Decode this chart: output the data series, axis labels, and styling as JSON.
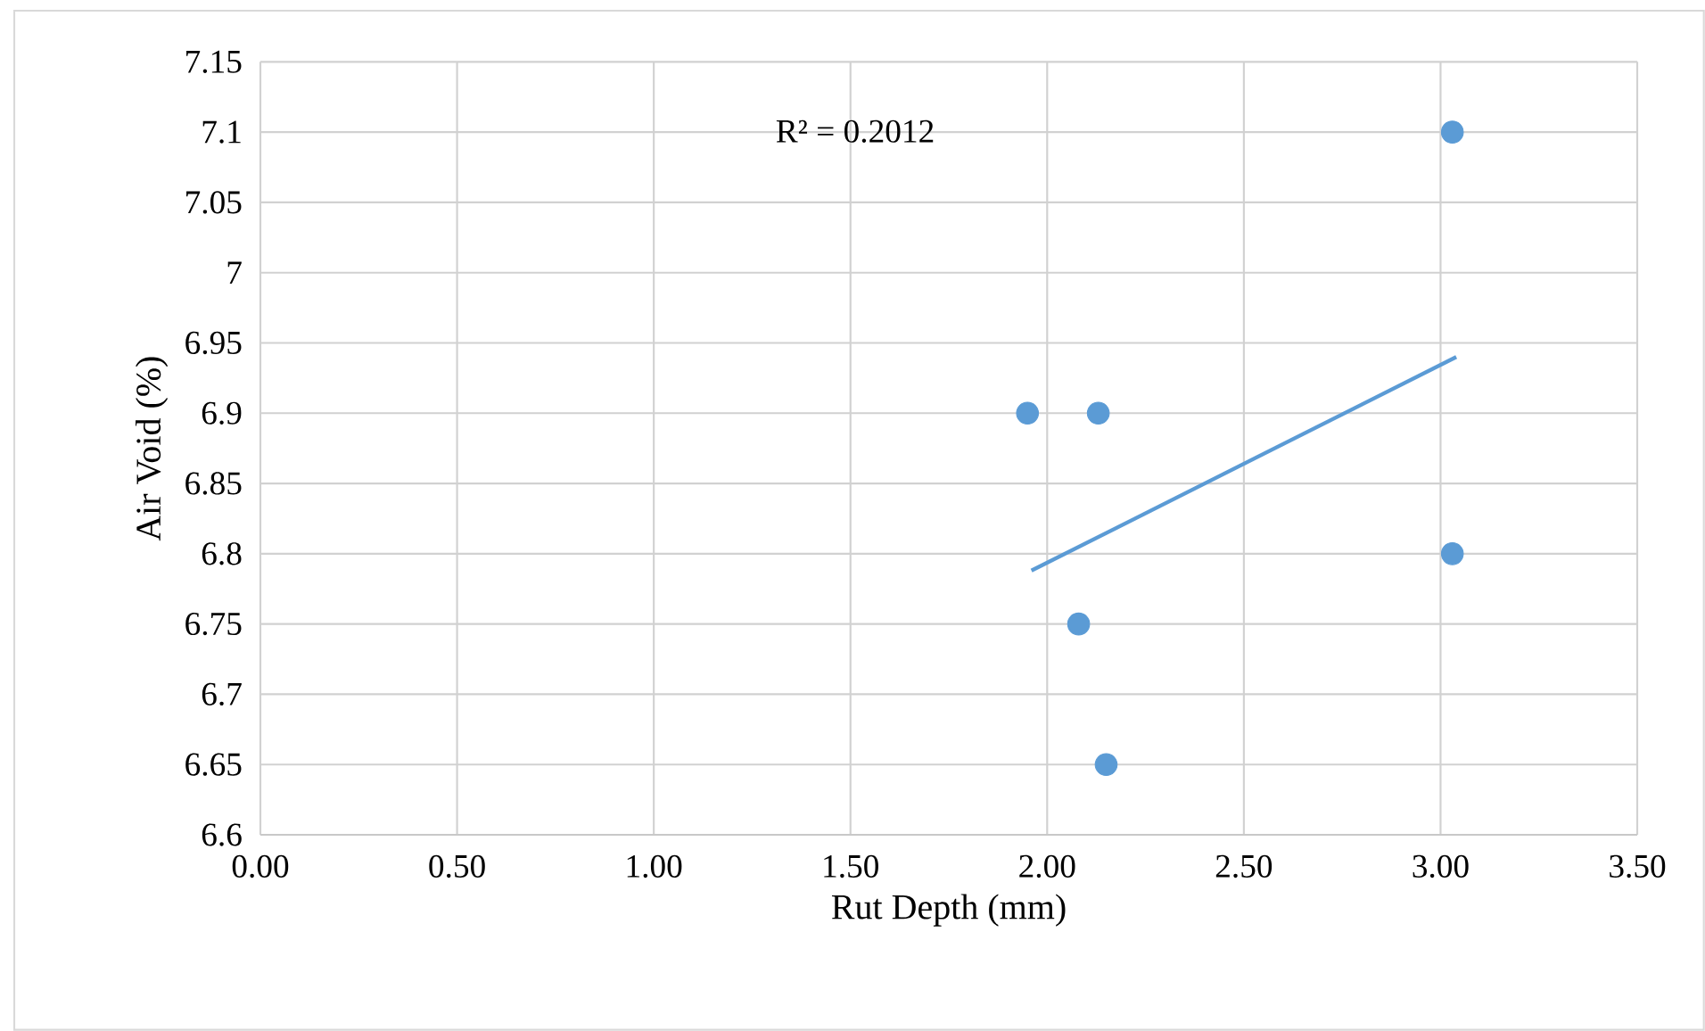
{
  "chart_data": {
    "type": "scatter",
    "xlabel": "Rut Depth (mm)",
    "ylabel": "Air Void (%)",
    "series": [
      {
        "marker": "circle",
        "color": "#5b9bd5",
        "x": [
          1.95,
          2.13,
          2.08,
          2.15,
          3.03,
          3.03
        ],
        "values": [
          6.9,
          6.9,
          6.75,
          6.65,
          7.1,
          6.8
        ]
      },
      {
        "type": "line",
        "marker": "none",
        "color": "#5b9bd5",
        "x": [
          1.96,
          3.04
        ],
        "values": [
          6.788,
          6.94
        ]
      }
    ],
    "annotations": [
      "R² = 0.2012"
    ],
    "xlim": [
      0,
      3.5
    ],
    "ylim": [
      6.6,
      7.15
    ],
    "xticks": [
      {
        "value": 0,
        "label": "0.00"
      },
      {
        "value": 0.5,
        "label": "0.50"
      },
      {
        "value": 1,
        "label": "1.00"
      },
      {
        "value": 1.5,
        "label": "1.50"
      },
      {
        "value": 2,
        "label": "2.00"
      },
      {
        "value": 2.5,
        "label": "2.50"
      },
      {
        "value": 3,
        "label": "3.00"
      },
      {
        "value": 3.5,
        "label": "3.50"
      }
    ],
    "yticks": [
      6.6,
      6.65,
      6.7,
      6.75,
      6.8,
      6.85,
      6.9,
      6.95,
      7,
      7.05,
      7.1,
      7.15
    ],
    "grid": true
  }
}
